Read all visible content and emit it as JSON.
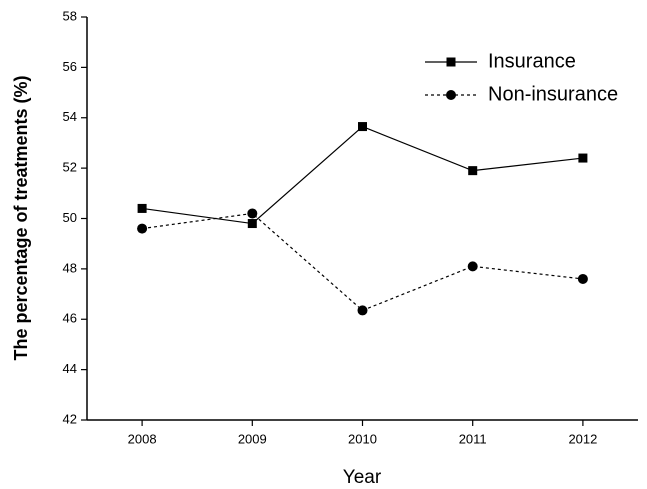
{
  "chart_data": {
    "type": "line",
    "xlabel": "Year",
    "ylabel": "The percentage of treatments (%)",
    "x": [
      2008,
      2009,
      2010,
      2011,
      2012
    ],
    "xlim": [
      2007.5,
      2012.5
    ],
    "xticks": [
      2008,
      2009,
      2010,
      2011,
      2012
    ],
    "ylim": [
      42,
      58
    ],
    "yticks": [
      42,
      44,
      46,
      48,
      50,
      52,
      54,
      56,
      58
    ],
    "legend": "upper-right",
    "series": [
      {
        "name": "Insurance",
        "color": "#000000",
        "linestyle": "solid",
        "marker": "square",
        "values": [
          50.4,
          49.8,
          53.65,
          51.9,
          52.4
        ]
      },
      {
        "name": "Non-insurance",
        "color": "#000000",
        "linestyle": "dotted",
        "marker": "circle",
        "values": [
          49.6,
          50.2,
          46.35,
          48.1,
          47.6
        ]
      }
    ]
  }
}
